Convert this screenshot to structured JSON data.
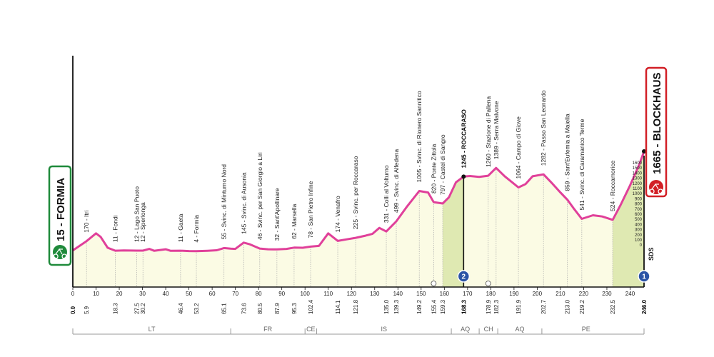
{
  "colors": {
    "profile_line": "#e0409a",
    "fill_flat": "#fbfbe4",
    "fill_climb": "#dfe9b2",
    "start_badge": "#1f8a3b",
    "finish_badge": "#d21f26",
    "axis": "#111111"
  },
  "start": {
    "altitude": "15",
    "name": "FORMIA",
    "label": "15 - FORMIA",
    "icon": "cycling-start-icon"
  },
  "finish": {
    "altitude": "1665",
    "name": "BLOCKHAUS",
    "label": "1665 - BLOCKHAUS",
    "icon": "cycling-finish-icon",
    "marker_text": "SDS"
  },
  "chart_data": {
    "type": "area",
    "x_unit": "km",
    "xlim": [
      0,
      246
    ],
    "ylim": [
      0,
      1700
    ],
    "x_ticks": [
      0,
      10,
      20,
      30,
      40,
      50,
      60,
      70,
      80,
      90,
      100,
      110,
      120,
      130,
      140,
      150,
      160,
      170,
      180,
      190,
      200,
      210,
      220,
      230,
      240
    ],
    "altitude_scale_ticks": [
      "1600",
      "1500",
      "1400",
      "1300",
      "1200",
      "1100",
      "1000",
      "900",
      "800",
      "700",
      "600",
      "500",
      "400",
      "300",
      "200",
      "100",
      "0"
    ],
    "profile": [
      [
        0,
        15
      ],
      [
        5.9,
        170
      ],
      [
        10,
        300
      ],
      [
        12,
        240
      ],
      [
        15,
        60
      ],
      [
        18.3,
        11
      ],
      [
        22,
        15
      ],
      [
        27.5,
        12
      ],
      [
        30.2,
        12
      ],
      [
        33,
        40
      ],
      [
        35,
        10
      ],
      [
        40,
        35
      ],
      [
        42,
        10
      ],
      [
        46.4,
        11
      ],
      [
        50,
        5
      ],
      [
        53.2,
        4
      ],
      [
        58,
        10
      ],
      [
        62,
        18
      ],
      [
        65.1,
        55
      ],
      [
        68,
        45
      ],
      [
        70,
        40
      ],
      [
        73.6,
        145
      ],
      [
        76,
        120
      ],
      [
        80.5,
        46
      ],
      [
        84,
        35
      ],
      [
        87.9,
        32
      ],
      [
        92,
        40
      ],
      [
        95.3,
        62
      ],
      [
        99,
        60
      ],
      [
        102.4,
        78
      ],
      [
        106,
        90
      ],
      [
        110,
        300
      ],
      [
        114.1,
        174
      ],
      [
        118,
        200
      ],
      [
        121.8,
        225
      ],
      [
        126,
        260
      ],
      [
        129,
        290
      ],
      [
        132,
        390
      ],
      [
        135,
        331
      ],
      [
        139.3,
        499
      ],
      [
        144,
        750
      ],
      [
        149.2,
        1005
      ],
      [
        153,
        980
      ],
      [
        155.4,
        820
      ],
      [
        159.3,
        797
      ],
      [
        162,
        900
      ],
      [
        165,
        1150
      ],
      [
        168.3,
        1245
      ],
      [
        171,
        1255
      ],
      [
        175,
        1240
      ],
      [
        178.9,
        1260
      ],
      [
        182.3,
        1389
      ],
      [
        186,
        1250
      ],
      [
        191.9,
        1064
      ],
      [
        195,
        1120
      ],
      [
        198,
        1250
      ],
      [
        202.7,
        1282
      ],
      [
        206,
        1150
      ],
      [
        210,
        980
      ],
      [
        213,
        859
      ],
      [
        216,
        700
      ],
      [
        219.2,
        541
      ],
      [
        224,
        600
      ],
      [
        228,
        580
      ],
      [
        232.5,
        524
      ],
      [
        236,
        780
      ],
      [
        240,
        1100
      ],
      [
        244,
        1450
      ],
      [
        246,
        1665
      ]
    ],
    "km_markers": [
      {
        "km": 0,
        "label": "0.0",
        "bold": true
      },
      {
        "km": 5.9,
        "label": "5.9"
      },
      {
        "km": 18.3,
        "label": "18.3"
      },
      {
        "km": 27.5,
        "label": "27.5"
      },
      {
        "km": 30.2,
        "label": "30.2"
      },
      {
        "km": 46.4,
        "label": "46.4"
      },
      {
        "km": 53.2,
        "label": "53.2"
      },
      {
        "km": 65.1,
        "label": "65.1"
      },
      {
        "km": 73.6,
        "label": "73.6"
      },
      {
        "km": 80.5,
        "label": "80.5"
      },
      {
        "km": 87.9,
        "label": "87.9"
      },
      {
        "km": 95.3,
        "label": "95.3"
      },
      {
        "km": 102.4,
        "label": "102.4"
      },
      {
        "km": 114.1,
        "label": "114.1"
      },
      {
        "km": 121.8,
        "label": "121.8"
      },
      {
        "km": 135.0,
        "label": "135.0"
      },
      {
        "km": 139.3,
        "label": "139.3"
      },
      {
        "km": 149.2,
        "label": "149.2"
      },
      {
        "km": 155.4,
        "label": "155.4"
      },
      {
        "km": 159.3,
        "label": "159.3"
      },
      {
        "km": 168.3,
        "label": "168.3",
        "bold": true
      },
      {
        "km": 178.9,
        "label": "178.9"
      },
      {
        "km": 182.3,
        "label": "182.3"
      },
      {
        "km": 191.9,
        "label": "191.9"
      },
      {
        "km": 202.7,
        "label": "202.7"
      },
      {
        "km": 213.0,
        "label": "213.0"
      },
      {
        "km": 219.2,
        "label": "219.2"
      },
      {
        "km": 232.5,
        "label": "232.5"
      },
      {
        "km": 246.0,
        "label": "246.0",
        "bold": true
      }
    ],
    "waypoints": [
      {
        "km": 5.9,
        "alt": 170,
        "label": "170 - Itri"
      },
      {
        "km": 18.3,
        "alt": 11,
        "label": "11 - Fondi"
      },
      {
        "km": 27.5,
        "alt": 12,
        "label": "12 - Lago San Puoto"
      },
      {
        "km": 30.2,
        "alt": 12,
        "label": "12 - Sperlonga"
      },
      {
        "km": 46.4,
        "alt": 11,
        "label": "11 - Gaeta"
      },
      {
        "km": 53.2,
        "alt": 4,
        "label": "4 - Formia"
      },
      {
        "km": 65.1,
        "alt": 55,
        "label": "55 - Svinc. di Minturno Nord"
      },
      {
        "km": 73.6,
        "alt": 145,
        "label": "145 - Svinc. di Ausonia"
      },
      {
        "km": 80.5,
        "alt": 46,
        "label": "46 - Svinc. per San Giorgio a Liri"
      },
      {
        "km": 87.9,
        "alt": 32,
        "label": "32 - Sant'Apollinare"
      },
      {
        "km": 95.3,
        "alt": 62,
        "label": "62 - Marsella"
      },
      {
        "km": 102.4,
        "alt": 78,
        "label": "78 - San Pietro Infine"
      },
      {
        "km": 114.1,
        "alt": 174,
        "label": "174 - Venafro"
      },
      {
        "km": 121.8,
        "alt": 225,
        "label": "225 - Svinc. per Roccaraso"
      },
      {
        "km": 135.0,
        "alt": 331,
        "label": "331 - Colli al Volturno"
      },
      {
        "km": 139.3,
        "alt": 499,
        "label": "499 - Svinc. di Alfedena"
      },
      {
        "km": 149.2,
        "alt": 1005,
        "label": "1005 - Svinc. di Rionero Sannitico"
      },
      {
        "km": 155.4,
        "alt": 820,
        "label": "820 - Ponte Zittola"
      },
      {
        "km": 159.3,
        "alt": 797,
        "label": "797 - Castel di Sangro"
      },
      {
        "km": 168.3,
        "alt": 1245,
        "label": "1245 - ROCCARASO",
        "bold": true
      },
      {
        "km": 178.9,
        "alt": 1260,
        "label": "1260 - Stazione di Pallena"
      },
      {
        "km": 182.3,
        "alt": 1389,
        "label": "1389 - Serra Malvone"
      },
      {
        "km": 191.9,
        "alt": 1064,
        "label": "1064 - Campo di Giove"
      },
      {
        "km": 202.7,
        "alt": 1282,
        "label": "1282 - Passo San Leonardo"
      },
      {
        "km": 213.0,
        "alt": 859,
        "label": "859 - Sant'Eufemia a Maiella"
      },
      {
        "km": 219.2,
        "alt": 541,
        "label": "541 - Svinc. di Caramanico Terme"
      },
      {
        "km": 232.5,
        "alt": 524,
        "label": "524 - Roccamorice"
      }
    ],
    "climbs": [
      {
        "from": 159.3,
        "to": 168.3
      },
      {
        "from": 232.5,
        "to": 246
      }
    ],
    "kom_markers": [
      {
        "km": 168.3,
        "category": "2"
      },
      {
        "km": 246,
        "category": "1"
      }
    ],
    "bonus_markers": [
      {
        "km": 155.4
      },
      {
        "km": 178.9
      }
    ],
    "regions": [
      {
        "from": 0,
        "to": 68,
        "label": "LT"
      },
      {
        "from": 68,
        "to": 100,
        "label": "FR"
      },
      {
        "from": 100,
        "to": 105,
        "label": "CE"
      },
      {
        "from": 105,
        "to": 163,
        "label": "IS"
      },
      {
        "from": 163,
        "to": 175,
        "label": "AQ"
      },
      {
        "from": 175,
        "to": 183,
        "label": "CH"
      },
      {
        "from": 183,
        "to": 202,
        "label": "AQ"
      },
      {
        "from": 202,
        "to": 240,
        "label": "PE"
      }
    ]
  }
}
